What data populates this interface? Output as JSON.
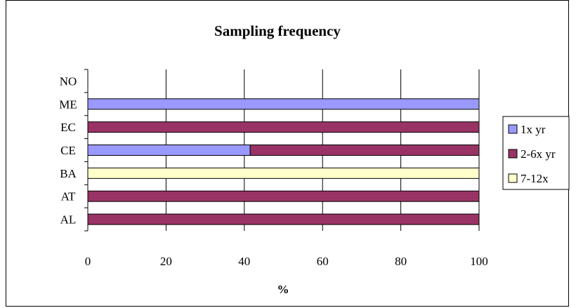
{
  "chart_data": {
    "type": "bar",
    "orientation": "horizontal",
    "stacked": true,
    "title": "Sampling frequency",
    "xlabel": "%",
    "ylabel": "",
    "xlim": [
      0,
      100
    ],
    "xticks": [
      0,
      20,
      40,
      60,
      80,
      100
    ],
    "categories": [
      "NO",
      "ME",
      "EC",
      "CE",
      "BA",
      "AT",
      "AL"
    ],
    "series": [
      {
        "name": "1x yr",
        "color": "#9999ff",
        "values": [
          0,
          100,
          0,
          41.5,
          0,
          0,
          0
        ]
      },
      {
        "name": "2-6x yr",
        "color": "#993366",
        "values": [
          0,
          0,
          100,
          58.5,
          0,
          100,
          100
        ]
      },
      {
        "name": "7-12x",
        "color": "#ffffcc",
        "values": [
          0,
          0,
          0,
          0,
          100,
          0,
          0
        ]
      }
    ],
    "grid": true,
    "legend": "right"
  }
}
